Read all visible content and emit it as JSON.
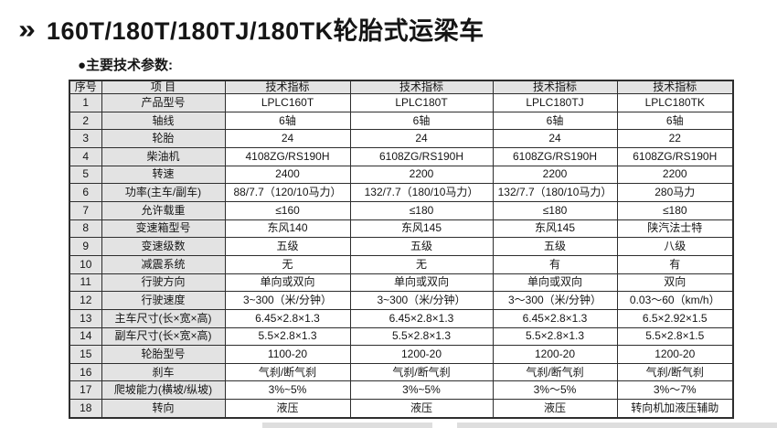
{
  "page": {
    "chevron_icon": "double-chevron-right",
    "chevron_glyph": "»",
    "title": "160T/180T/180TJ/180TK轮胎式运梁车",
    "section_label": "●主要技术参数:"
  },
  "colors": {
    "border": "#2e2e2e",
    "header_bg": "#e3e3e3",
    "text": "#151515",
    "page_bg": "#ffffff"
  },
  "table": {
    "headers": [
      "序号",
      "项 目",
      "技术指标",
      "技术指标",
      "技术指标",
      "技术指标"
    ],
    "rows": [
      [
        "1",
        "产品型号",
        "LPLC160T",
        "LPLC180T",
        "LPLC180TJ",
        "LPLC180TK"
      ],
      [
        "2",
        "轴线",
        "6轴",
        "6轴",
        "6轴",
        "6轴"
      ],
      [
        "3",
        "轮胎",
        "24",
        "24",
        "24",
        "22"
      ],
      [
        "4",
        "柴油机",
        "4108ZG/RS190H",
        "6108ZG/RS190H",
        "6108ZG/RS190H",
        "6108ZG/RS190H"
      ],
      [
        "5",
        "转速",
        "2400",
        "2200",
        "2200",
        "2200"
      ],
      [
        "6",
        "功率(主车/副车)",
        "88/7.7（120/10马力）",
        "132/7.7（180/10马力）",
        "132/7.7（180/10马力）",
        "280马力"
      ],
      [
        "7",
        "允许载重",
        "≤160",
        "≤180",
        "≤180",
        "≤180"
      ],
      [
        "8",
        "变速箱型号",
        "东风140",
        "东风145",
        "东风145",
        "陕汽法士特"
      ],
      [
        "9",
        "变速级数",
        "五级",
        "五级",
        "五级",
        "八级"
      ],
      [
        "10",
        "减震系统",
        "无",
        "无",
        "有",
        "有"
      ],
      [
        "11",
        "行驶方向",
        "单向或双向",
        "单向或双向",
        "单向或双向",
        "双向"
      ],
      [
        "12",
        "行驶速度",
        "3~300（米/分钟）",
        "3~300（米/分钟）",
        "3～300（米/分钟）",
        "0.03～60（km/h）"
      ],
      [
        "13",
        "主车尺寸(长×宽×高)",
        "6.45×2.8×1.3",
        "6.45×2.8×1.3",
        "6.45×2.8×1.3",
        "6.5×2.92×1.5"
      ],
      [
        "14",
        "副车尺寸(长×宽×高)",
        "5.5×2.8×1.3",
        "5.5×2.8×1.3",
        "5.5×2.8×1.3",
        "5.5×2.8×1.5"
      ],
      [
        "15",
        "轮胎型号",
        "1100-20",
        "1200-20",
        "1200-20",
        "1200-20"
      ],
      [
        "16",
        "刹车",
        "气刹/断气刹",
        "气刹/断气刹",
        "气刹/断气刹",
        "气刹/断气刹"
      ],
      [
        "17",
        "爬坡能力(横坡/纵坡)",
        "3%~5%",
        "3%~5%",
        "3%～5%",
        "3%～7%"
      ],
      [
        "18",
        "转向",
        "液压",
        "液压",
        "液压",
        "转向机加液压辅助"
      ]
    ]
  }
}
